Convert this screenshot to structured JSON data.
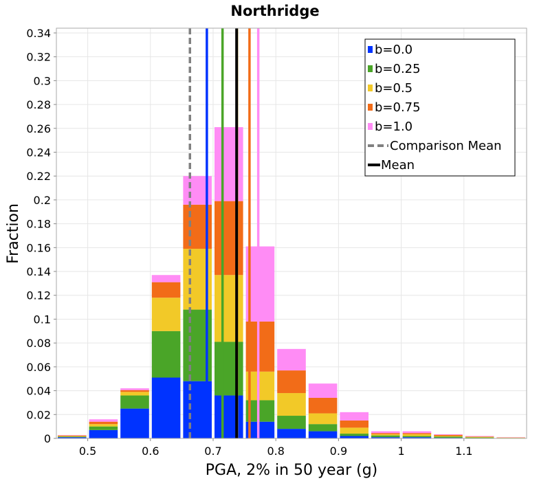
{
  "chart_data": {
    "type": "bar",
    "stacked": true,
    "title": "Northridge",
    "xlabel": "PGA, 2% in 50 year (g)",
    "ylabel": "Fraction",
    "xlim": [
      0.45,
      1.2
    ],
    "ylim": [
      0,
      0.344
    ],
    "bin_width": 0.05,
    "x_ticks": [
      0.5,
      0.6,
      0.7,
      0.8,
      0.9,
      1.0,
      1.1
    ],
    "x_tick_labels": [
      "0.5",
      "0.6",
      "0.7",
      "0.8",
      "0.9",
      "1",
      "1.1"
    ],
    "y_ticks": [
      0,
      0.02,
      0.04,
      0.06,
      0.08,
      0.1,
      0.12,
      0.14,
      0.16,
      0.18,
      0.2,
      0.22,
      0.24,
      0.26,
      0.28,
      0.3,
      0.32,
      0.34
    ],
    "y_tick_labels": [
      "0",
      "0.02",
      "0.04",
      "0.06",
      "0.08",
      "0.1",
      "0.12",
      "0.14",
      "0.16",
      "0.18",
      "0.2",
      "0.22",
      "0.24",
      "0.26",
      "0.28",
      "0.3",
      "0.32",
      "0.34"
    ],
    "grid": true,
    "legend_position": "top-right",
    "bin_starts": [
      0.45,
      0.5,
      0.55,
      0.6,
      0.65,
      0.7,
      0.75,
      0.8,
      0.85,
      0.9,
      0.95,
      1.0,
      1.05,
      1.1,
      1.15
    ],
    "series": [
      {
        "name": "b=0.0",
        "color": "#0033ff",
        "values": [
          0.001,
          0.007,
          0.025,
          0.051,
          0.048,
          0.036,
          0.014,
          0.008,
          0.006,
          0.002,
          0.001,
          0.001,
          0.0005,
          0.0003,
          0.0002
        ]
      },
      {
        "name": "b=0.25",
        "color": "#4aa528",
        "values": [
          0.0005,
          0.003,
          0.011,
          0.039,
          0.06,
          0.045,
          0.018,
          0.011,
          0.006,
          0.002,
          0.0015,
          0.001,
          0.001,
          0.0005,
          0.0002
        ]
      },
      {
        "name": "b=0.5",
        "color": "#f2c928",
        "values": [
          0.0005,
          0.002,
          0.003,
          0.028,
          0.051,
          0.056,
          0.024,
          0.019,
          0.009,
          0.005,
          0.001,
          0.0015,
          0.0005,
          0.0004,
          0.0002
        ]
      },
      {
        "name": "b=0.75",
        "color": "#f26c18",
        "values": [
          0.0005,
          0.002,
          0.0015,
          0.013,
          0.037,
          0.062,
          0.042,
          0.019,
          0.013,
          0.006,
          0.001,
          0.001,
          0.001,
          0.0004,
          0.0002
        ]
      },
      {
        "name": "b=1.0",
        "color": "#ff8cf5",
        "values": [
          0.0003,
          0.002,
          0.0015,
          0.006,
          0.024,
          0.062,
          0.063,
          0.018,
          0.012,
          0.007,
          0.0015,
          0.0015,
          0.0005,
          0.0004,
          0.0002
        ]
      }
    ],
    "mean_lines": [
      {
        "name": "b=0.0 mean",
        "color": "#0033ff",
        "x": 0.69,
        "dashed": false
      },
      {
        "name": "b=0.25 mean",
        "color": "#4aa528",
        "x": 0.715,
        "dashed": false
      },
      {
        "name": "b=0.5 mean",
        "color": "#f2c928",
        "x": 0.738,
        "dashed": false
      },
      {
        "name": "b=0.75 mean",
        "color": "#f26c18",
        "x": 0.758,
        "dashed": false
      },
      {
        "name": "b=1.0 mean",
        "color": "#ff8cf5",
        "x": 0.772,
        "dashed": false
      },
      {
        "name": "Mean",
        "color": "#000000",
        "x": 0.7375,
        "dashed": false,
        "thick": true
      },
      {
        "name": "Comparison Mean",
        "color": "#808080",
        "x": 0.663,
        "dashed": true
      }
    ],
    "legend": [
      {
        "label": "b=0.0",
        "color": "#0033ff",
        "kind": "box"
      },
      {
        "label": "b=0.25",
        "color": "#4aa528",
        "kind": "box"
      },
      {
        "label": "b=0.5",
        "color": "#f2c928",
        "kind": "box"
      },
      {
        "label": "b=0.75",
        "color": "#f26c18",
        "kind": "box"
      },
      {
        "label": "b=1.0",
        "color": "#ff8cf5",
        "kind": "box"
      },
      {
        "label": "Comparison Mean",
        "color": "#808080",
        "kind": "dash"
      },
      {
        "label": "Mean",
        "color": "#000000",
        "kind": "line"
      }
    ]
  }
}
